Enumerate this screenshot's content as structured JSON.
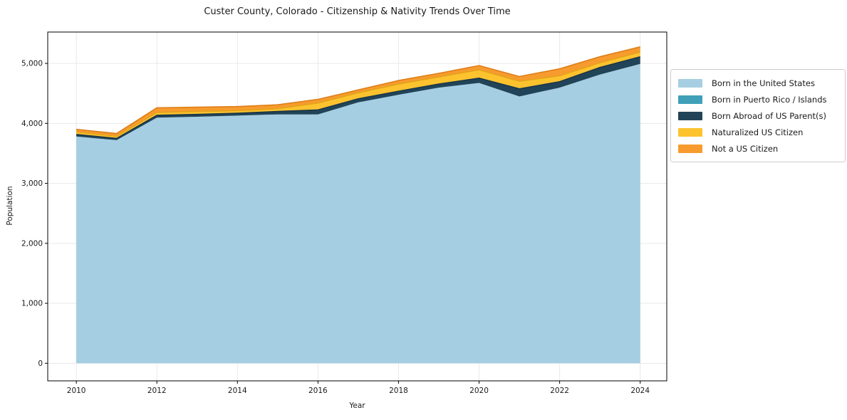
{
  "colors": {
    "background": "#ffffff",
    "grid": "#e9e9e9",
    "spine": "#000000",
    "text": "#1a1a1a",
    "legend_border": "#cccccc"
  },
  "chart_data": {
    "type": "area",
    "stacked": true,
    "title": "Custer County, Colorado - Citizenship & Nativity Trends Over Time",
    "xlabel": "Year",
    "ylabel": "Population",
    "x": [
      2010,
      2011,
      2012,
      2013,
      2014,
      2015,
      2016,
      2017,
      2018,
      2019,
      2020,
      2021,
      2022,
      2023,
      2024
    ],
    "series": [
      {
        "name": "Born in the United States",
        "color": "#a6cee3",
        "edge": null,
        "values": [
          3780,
          3720,
          4095,
          4110,
          4130,
          4150,
          4150,
          4350,
          4477,
          4596,
          4674,
          4449,
          4596,
          4813,
          4991
        ]
      },
      {
        "name": "Born in Puerto Rico / Islands",
        "color": "#3fa0b8",
        "edge": null,
        "values": [
          0,
          0,
          0,
          0,
          0,
          0,
          0,
          0,
          0,
          0,
          0,
          0,
          0,
          0,
          0
        ]
      },
      {
        "name": "Born Abroad of US Parent(s)",
        "color": "#214458",
        "edge": "#1a3749",
        "values": [
          35,
          30,
          40,
          40,
          40,
          48,
          75,
          60,
          60,
          59,
          80,
          127,
          98,
          119,
          119
        ]
      },
      {
        "name": "Naturalized US Citizen",
        "color": "#fdc32f",
        "edge": "#e2a41a",
        "values": [
          40,
          35,
          45,
          48,
          40,
          47,
          115,
          100,
          118,
          119,
          139,
          127,
          99,
          80,
          80
        ]
      },
      {
        "name": "Not a US Citizen",
        "color": "#f79b2e",
        "edge": "#de7e17",
        "values": [
          45,
          45,
          80,
          71,
          70,
          65,
          60,
          48,
          60,
          60,
          71,
          78,
          118,
          99,
          86
        ]
      }
    ],
    "totals": [
      3900,
      3830,
      4260,
      4269,
      4280,
      4310,
      4400,
      4558,
      4715,
      4834,
      4964,
      4781,
      4911,
      5111,
      5276
    ],
    "xticks": {
      "values": [
        2010,
        2012,
        2014,
        2016,
        2018,
        2020,
        2022,
        2024
      ],
      "labels": [
        "2010",
        "2012",
        "2014",
        "2016",
        "2018",
        "2020",
        "2022",
        "2024"
      ]
    },
    "yticks": {
      "values": [
        0,
        1000,
        2000,
        3000,
        4000,
        5000
      ],
      "labels": [
        "0",
        "1,000",
        "2,000",
        "3,000",
        "4,000",
        "5,000"
      ]
    },
    "xlim": [
      2009.29,
      2024.66
    ],
    "ylim": [
      -293,
      5523
    ],
    "grid": true,
    "legend_position": "right"
  }
}
